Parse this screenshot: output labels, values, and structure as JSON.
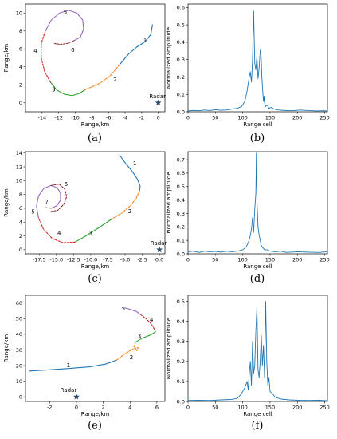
{
  "chart_data": [
    {
      "id": "a",
      "type": "line",
      "panel_label": "(a)",
      "xlabel": "Range/km",
      "ylabel": "Range/km",
      "xlim": [
        -16,
        0.8
      ],
      "ylim": [
        -1,
        11
      ],
      "xticks": [
        -14,
        -12,
        -10,
        -8,
        -6,
        -4,
        -2,
        0
      ],
      "yticks": [
        0,
        2,
        4,
        6,
        8,
        10
      ],
      "radar": {
        "label": "Radar",
        "x": 0,
        "y": 0
      },
      "segments": [
        {
          "name": "1",
          "color": "#1f77b4",
          "dash": false,
          "label_pos": [
            -1.6,
            7.0
          ],
          "points": [
            [
              -0.7,
              8.7
            ],
            [
              -0.9,
              7.6
            ],
            [
              -1.6,
              6.8
            ],
            [
              -2.6,
              6.2
            ],
            [
              -3.6,
              5.4
            ],
            [
              -4.7,
              4.2
            ]
          ]
        },
        {
          "name": "2",
          "color": "#ff7f0e",
          "dash": true,
          "label_pos": [
            -5.2,
            2.6
          ],
          "points": [
            [
              -4.7,
              4.2
            ],
            [
              -5.8,
              3.0
            ],
            [
              -7.0,
              2.2
            ],
            [
              -8.2,
              1.7
            ],
            [
              -8.9,
              1.4
            ]
          ]
        },
        {
          "name": "3",
          "color": "#2ca02c",
          "dash": false,
          "label_pos": [
            -12.6,
            1.5
          ],
          "points": [
            [
              -8.9,
              1.4
            ],
            [
              -9.6,
              1.0
            ],
            [
              -10.4,
              0.8
            ],
            [
              -11.3,
              0.95
            ],
            [
              -12.2,
              1.4
            ],
            [
              -13.0,
              2.3
            ]
          ]
        },
        {
          "name": "4",
          "color": "#d62728",
          "dash": true,
          "label_pos": [
            -14.8,
            5.8
          ],
          "points": [
            [
              -13.0,
              2.3
            ],
            [
              -13.7,
              3.5
            ],
            [
              -14.1,
              5.0
            ],
            [
              -14.1,
              6.6
            ],
            [
              -13.6,
              8.0
            ]
          ]
        },
        {
          "name": "5",
          "color": "#9467bd",
          "dash": false,
          "label_pos": [
            -11.2,
            10.1
          ],
          "points": [
            [
              -13.6,
              8.0
            ],
            [
              -12.9,
              9.2
            ],
            [
              -11.9,
              10.0
            ],
            [
              -10.8,
              10.3
            ],
            [
              -9.8,
              10.0
            ],
            [
              -9.1,
              9.2
            ],
            [
              -9.0,
              8.2
            ],
            [
              -9.4,
              7.3
            ],
            [
              -10.2,
              6.9
            ]
          ]
        },
        {
          "name": "6",
          "color": "#8c2a2a",
          "dash": true,
          "label_pos": [
            -10.3,
            5.9
          ],
          "points": [
            [
              -10.2,
              6.9
            ],
            [
              -11.0,
              6.6
            ],
            [
              -11.8,
              6.5
            ],
            [
              -12.5,
              6.6
            ]
          ]
        }
      ]
    },
    {
      "id": "b",
      "type": "line",
      "panel_label": "(b)",
      "xlabel": "Range cell",
      "ylabel": "Normalized amplitude",
      "xlim": [
        0,
        255
      ],
      "ylim": [
        0,
        0.62
      ],
      "xticks": [
        0,
        50,
        100,
        150,
        200,
        250
      ],
      "yticks": [
        0.0,
        0.1,
        0.2,
        0.3,
        0.4,
        0.5,
        0.6
      ],
      "tick_decimals": 1,
      "series": [
        {
          "color": "#1f77b4",
          "x": [
            0,
            10,
            20,
            30,
            40,
            50,
            60,
            70,
            80,
            90,
            98,
            104,
            108,
            112,
            114,
            116,
            118,
            120,
            122,
            124,
            126,
            128,
            130,
            132,
            133,
            134,
            135,
            136,
            137,
            138,
            139,
            140,
            142,
            145,
            148,
            152,
            158,
            165,
            175,
            190,
            205,
            220,
            235,
            250,
            255
          ],
          "y": [
            0.005,
            0.008,
            0.006,
            0.01,
            0.007,
            0.012,
            0.009,
            0.01,
            0.015,
            0.02,
            0.03,
            0.06,
            0.12,
            0.2,
            0.23,
            0.17,
            0.3,
            0.58,
            0.28,
            0.24,
            0.32,
            0.19,
            0.25,
            0.35,
            0.36,
            0.29,
            0.2,
            0.15,
            0.1,
            0.06,
            0.09,
            0.05,
            0.03,
            0.04,
            0.02,
            0.025,
            0.015,
            0.01,
            0.008,
            0.006,
            0.01,
            0.007,
            0.005,
            0.006,
            0.004
          ]
        }
      ]
    },
    {
      "id": "c",
      "type": "line",
      "panel_label": "(c)",
      "xlabel": "Range/km",
      "ylabel": "Range/km",
      "xlim": [
        -19.5,
        0.8
      ],
      "ylim": [
        -0.6,
        14.2
      ],
      "xticks": [
        -17.5,
        -15.0,
        -12.5,
        -10.0,
        -7.5,
        -5.0,
        -2.5,
        0.0
      ],
      "tick_decimals": 1,
      "yticks": [
        0,
        2,
        4,
        6,
        8,
        10,
        12,
        14
      ],
      "radar": {
        "label": "Radar",
        "x": 0,
        "y": 0
      },
      "segments": [
        {
          "name": "1",
          "color": "#1f77b4",
          "dash": false,
          "label_pos": [
            -3.6,
            12.5
          ],
          "points": [
            [
              -5.8,
              13.7
            ],
            [
              -5.0,
              12.6
            ],
            [
              -4.0,
              11.4
            ],
            [
              -3.2,
              10.2
            ],
            [
              -2.8,
              9.2
            ],
            [
              -2.9,
              8.5
            ]
          ]
        },
        {
          "name": "2",
          "color": "#ff7f0e",
          "dash": true,
          "label_pos": [
            -4.3,
            5.6
          ],
          "points": [
            [
              -2.9,
              8.5
            ],
            [
              -3.4,
              7.4
            ],
            [
              -4.3,
              6.3
            ],
            [
              -5.5,
              5.3
            ],
            [
              -7.0,
              4.4
            ]
          ]
        },
        {
          "name": "3",
          "color": "#2ca02c",
          "dash": false,
          "label_pos": [
            -10.0,
            2.4
          ],
          "points": [
            [
              -7.0,
              4.4
            ],
            [
              -8.8,
              3.2
            ],
            [
              -10.7,
              2.0
            ],
            [
              -12.3,
              1.1
            ]
          ]
        },
        {
          "name": "4",
          "color": "#d62728",
          "dash": true,
          "label_pos": [
            -14.6,
            2.4
          ],
          "points": [
            [
              -12.3,
              1.1
            ],
            [
              -14.0,
              1.0
            ],
            [
              -15.6,
              1.6
            ],
            [
              -16.9,
              3.0
            ],
            [
              -17.6,
              4.6
            ]
          ]
        },
        {
          "name": "5",
          "color": "#9467bd",
          "dash": false,
          "label_pos": [
            -18.4,
            5.5
          ],
          "points": [
            [
              -17.6,
              4.6
            ],
            [
              -17.9,
              6.3
            ],
            [
              -17.6,
              7.8
            ],
            [
              -16.8,
              8.9
            ],
            [
              -15.8,
              9.3
            ],
            [
              -14.9,
              9.0
            ],
            [
              -14.4,
              8.2
            ],
            [
              -14.4,
              7.2
            ],
            [
              -14.9,
              6.4
            ],
            [
              -15.7,
              6.0
            ],
            [
              -16.6,
              6.1
            ]
          ]
        },
        {
          "name": "6",
          "color": "#8c2a2a",
          "dash": true,
          "label_pos": [
            -13.6,
            9.5
          ],
          "points": [
            [
              -15.8,
              9.3
            ],
            [
              -14.6,
              9.5
            ],
            [
              -13.8,
              8.8
            ],
            [
              -13.5,
              7.7
            ],
            [
              -13.9,
              6.6
            ],
            [
              -14.8,
              5.7
            ],
            [
              -15.9,
              5.5
            ]
          ]
        },
        {
          "name": "7",
          "color": "#000000",
          "dash": false,
          "label_only": true,
          "label_pos": [
            -16.4,
            7.0
          ],
          "points": []
        }
      ]
    },
    {
      "id": "d",
      "type": "line",
      "panel_label": "(d)",
      "xlabel": "Range cell",
      "ylabel": "Normalized amplitude",
      "xlim": [
        0,
        255
      ],
      "ylim": [
        0,
        0.76
      ],
      "xticks": [
        0,
        50,
        100,
        150,
        200,
        250
      ],
      "yticks": [
        0.0,
        0.1,
        0.2,
        0.3,
        0.4,
        0.5,
        0.6,
        0.7
      ],
      "tick_decimals": 1,
      "series": [
        {
          "color": "#1f77b4",
          "x": [
            0,
            10,
            20,
            30,
            40,
            50,
            60,
            70,
            80,
            90,
            100,
            106,
            110,
            113,
            116,
            118,
            120,
            122,
            124,
            125,
            126,
            127,
            128,
            130,
            132,
            134,
            136,
            140,
            145,
            150,
            160,
            170,
            180,
            200,
            220,
            240,
            255
          ],
          "y": [
            0.015,
            0.02,
            0.01,
            0.02,
            0.015,
            0.018,
            0.012,
            0.02,
            0.015,
            0.02,
            0.03,
            0.05,
            0.08,
            0.12,
            0.18,
            0.27,
            0.16,
            0.33,
            0.45,
            0.75,
            0.4,
            0.3,
            0.2,
            0.14,
            0.1,
            0.06,
            0.05,
            0.03,
            0.03,
            0.02,
            0.015,
            0.02,
            0.01,
            0.015,
            0.012,
            0.01,
            0.015
          ]
        }
      ]
    },
    {
      "id": "e",
      "type": "line",
      "panel_label": "(e)",
      "xlabel": "Range/km",
      "ylabel": "Range/km",
      "xlim": [
        -3.8,
        6.6
      ],
      "ylim": [
        -3,
        65
      ],
      "xticks": [
        -2,
        0,
        2,
        4,
        6
      ],
      "yticks": [
        0,
        10,
        20,
        30,
        40,
        50,
        60
      ],
      "radar": {
        "label": "Radar",
        "x": 0,
        "y": 0
      },
      "segments": [
        {
          "name": "1",
          "color": "#1f77b4",
          "dash": false,
          "label_pos": [
            -0.6,
            20.2
          ],
          "points": [
            [
              -3.5,
              16.5
            ],
            [
              -2.0,
              17.3
            ],
            [
              -0.5,
              18.2
            ],
            [
              1.0,
              19.2
            ],
            [
              2.2,
              21.0
            ],
            [
              3.0,
              23.5
            ]
          ]
        },
        {
          "name": "2",
          "color": "#ff7f0e",
          "dash": true,
          "label_pos": [
            4.1,
            25.5
          ],
          "points": [
            [
              3.0,
              23.5
            ],
            [
              3.6,
              27.5
            ],
            [
              4.2,
              30.5
            ],
            [
              4.6,
              31.5
            ],
            [
              4.5,
              29.5
            ],
            [
              4.3,
              32.0
            ],
            [
              4.4,
              35.0
            ]
          ]
        },
        {
          "name": "3",
          "color": "#2ca02c",
          "dash": false,
          "label_pos": [
            4.7,
            39.0
          ],
          "points": [
            [
              4.4,
              35.0
            ],
            [
              4.9,
              37.5
            ],
            [
              5.5,
              39.5
            ],
            [
              5.9,
              41.5
            ],
            [
              5.8,
              43.5
            ]
          ]
        },
        {
          "name": "4",
          "color": "#d62728",
          "dash": true,
          "label_pos": [
            5.6,
            49.5
          ],
          "points": [
            [
              5.8,
              43.5
            ],
            [
              5.6,
              46.5
            ],
            [
              5.2,
              50.0
            ],
            [
              4.8,
              52.5
            ]
          ]
        },
        {
          "name": "5",
          "color": "#9467bd",
          "dash": false,
          "label_pos": [
            3.5,
            56.5
          ],
          "points": [
            [
              4.8,
              52.5
            ],
            [
              4.5,
              54.5
            ],
            [
              4.0,
              56.0
            ],
            [
              3.6,
              57.0
            ]
          ]
        }
      ]
    },
    {
      "id": "f",
      "type": "line",
      "panel_label": "(f)",
      "xlabel": "Range cell",
      "ylabel": "Normalized amplitude",
      "xlim": [
        0,
        255
      ],
      "ylim": [
        0,
        0.53
      ],
      "xticks": [
        0,
        50,
        100,
        150,
        200,
        250
      ],
      "yticks": [
        0.0,
        0.1,
        0.2,
        0.3,
        0.4,
        0.5
      ],
      "tick_decimals": 1,
      "series": [
        {
          "color": "#1f77b4",
          "x": [
            0,
            20,
            40,
            60,
            80,
            90,
            95,
            100,
            104,
            108,
            110,
            112,
            114,
            116,
            118,
            120,
            122,
            124,
            126,
            128,
            130,
            132,
            134,
            136,
            138,
            140,
            142,
            144,
            146,
            148,
            150,
            154,
            160,
            170,
            185,
            200,
            220,
            240,
            255
          ],
          "y": [
            0.005,
            0.006,
            0.005,
            0.008,
            0.01,
            0.015,
            0.03,
            0.05,
            0.07,
            0.1,
            0.06,
            0.14,
            0.2,
            0.08,
            0.3,
            0.14,
            0.18,
            0.35,
            0.47,
            0.16,
            0.12,
            0.2,
            0.33,
            0.18,
            0.28,
            0.12,
            0.5,
            0.2,
            0.08,
            0.12,
            0.05,
            0.04,
            0.02,
            0.012,
            0.008,
            0.006,
            0.005,
            0.006,
            0.004
          ]
        }
      ]
    }
  ]
}
